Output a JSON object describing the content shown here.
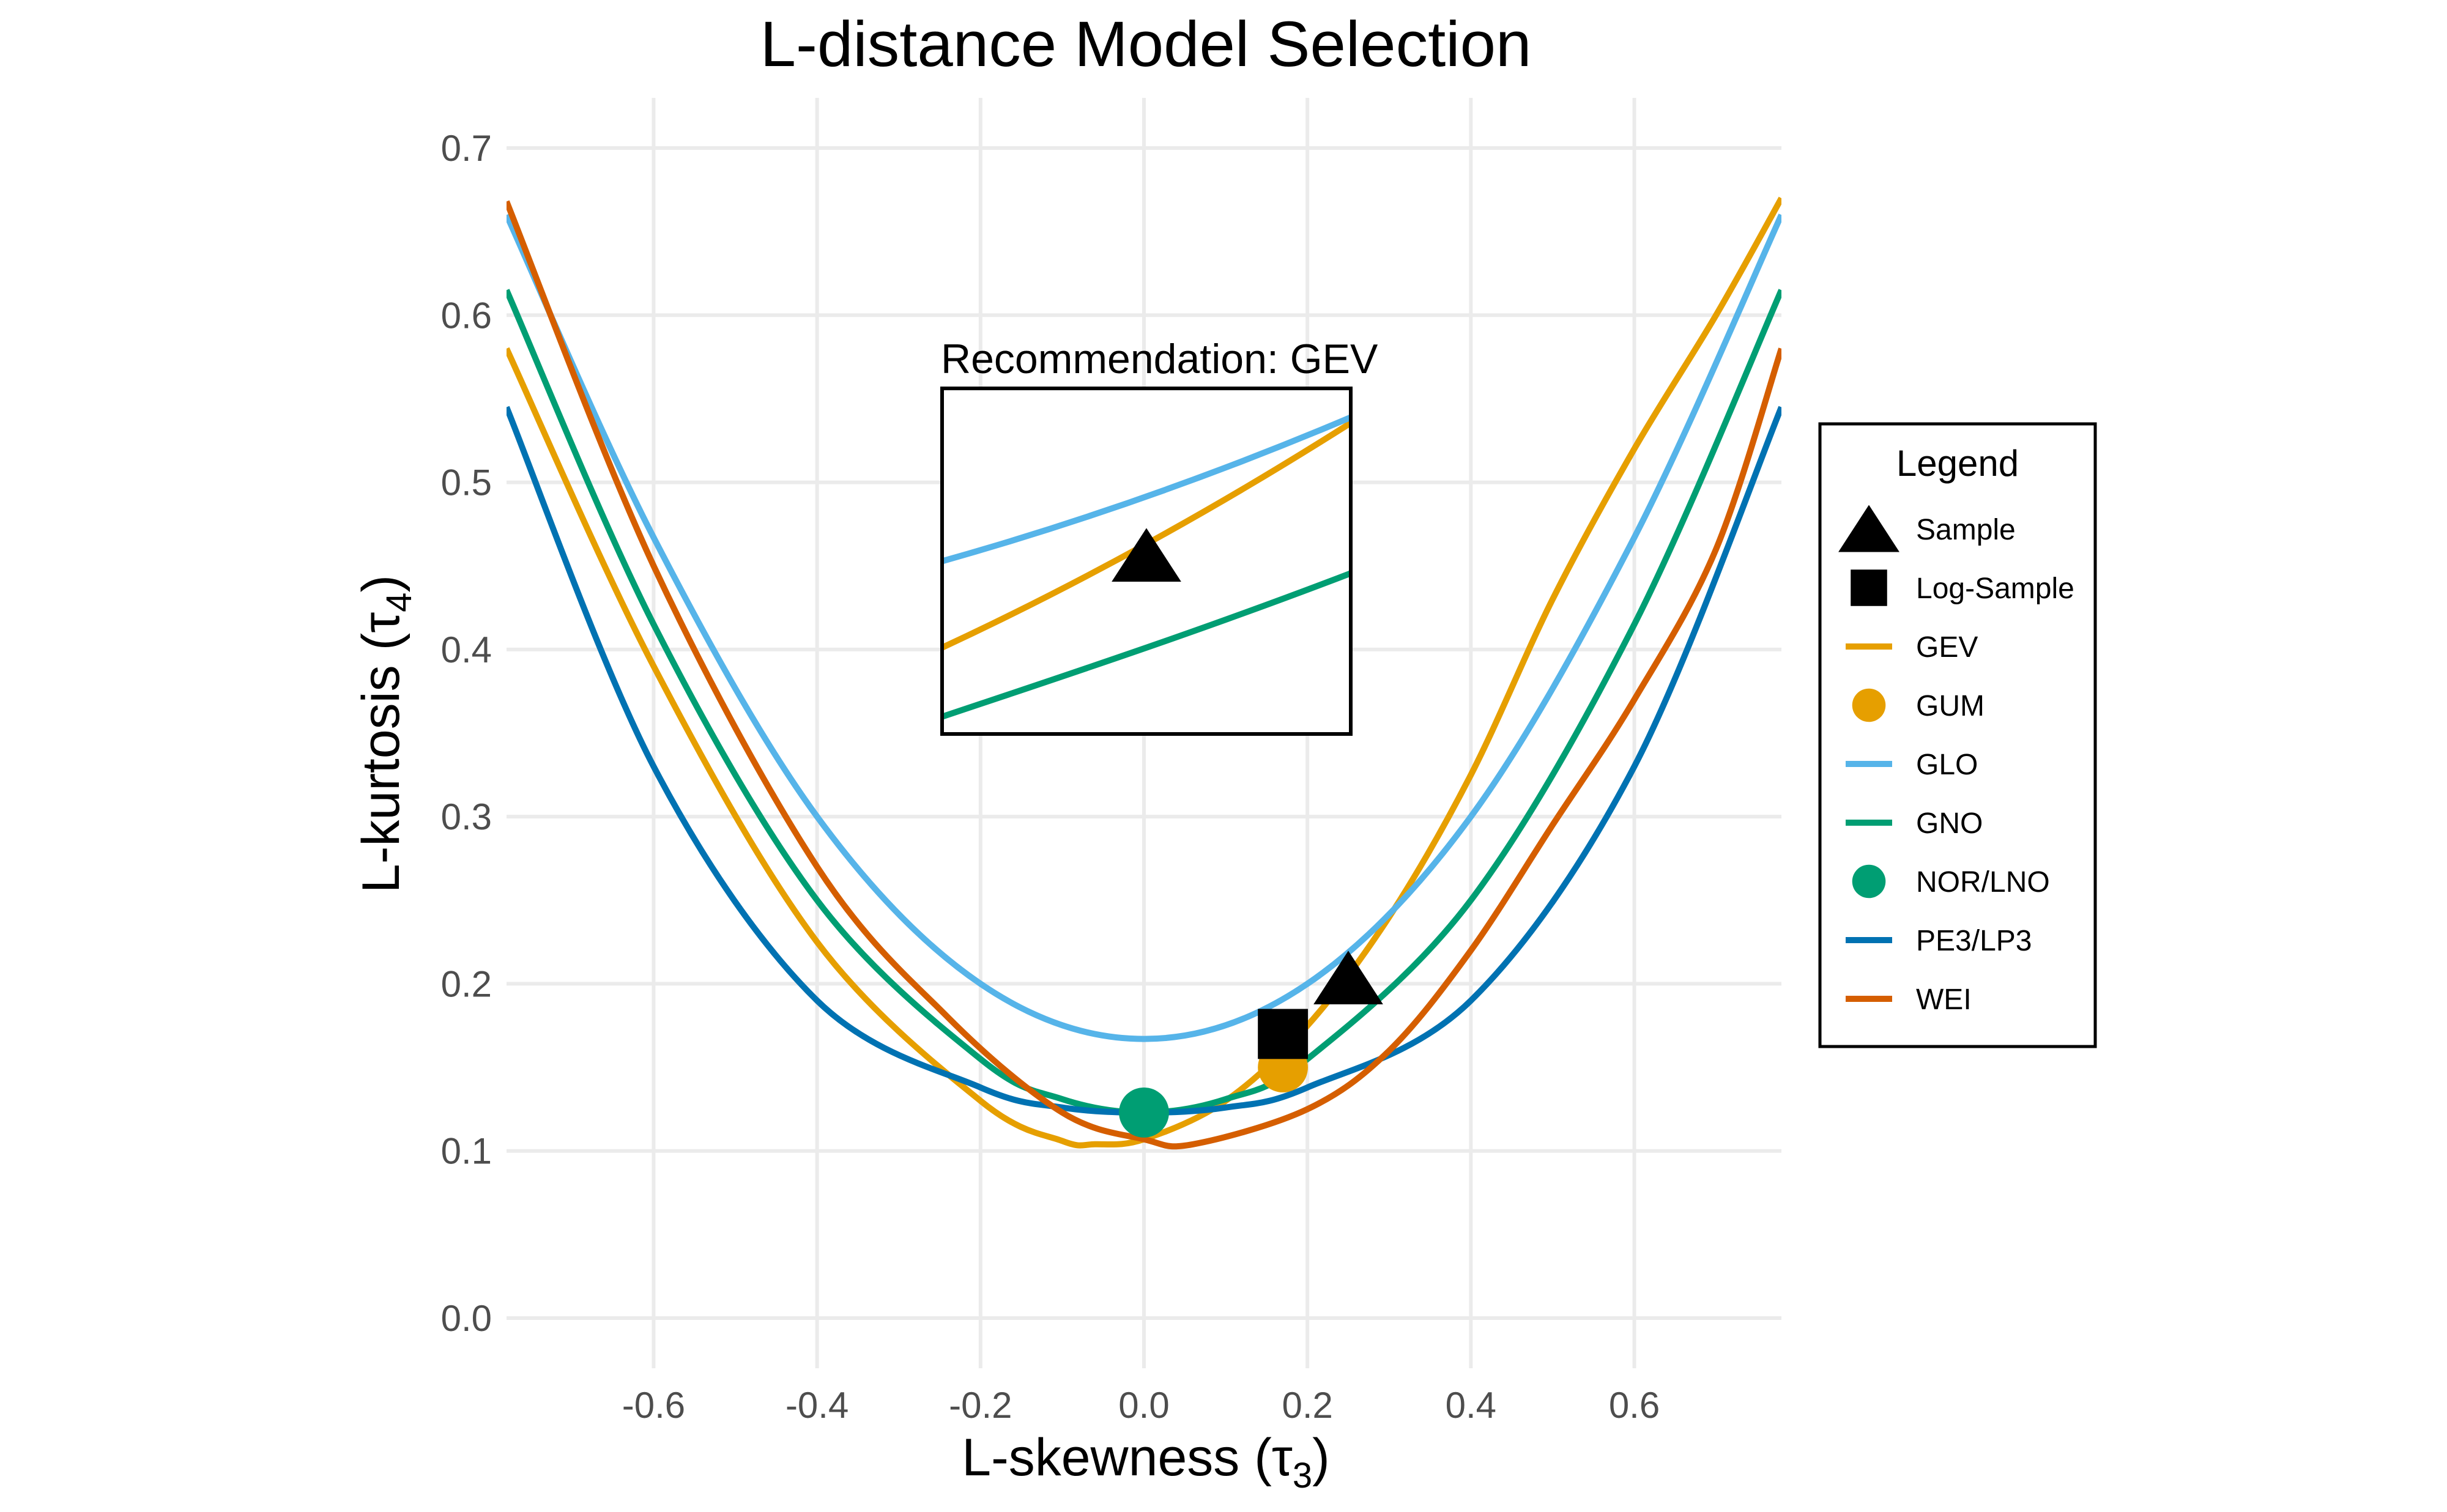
{
  "chart_data": {
    "type": "line",
    "title": "L-distance Model Selection",
    "xlabel": {
      "main": "L-skewness (τ",
      "sub": "3",
      "close": ")"
    },
    "ylabel": {
      "main": "L-kurtosis (τ",
      "sub": "4",
      "close": ")"
    },
    "xlim": [
      -0.78,
      0.78
    ],
    "ylim": [
      -0.03,
      0.73
    ],
    "x_ticks": [
      -0.6,
      -0.4,
      -0.2,
      0.0,
      0.2,
      0.4,
      0.6
    ],
    "x_tick_labels": [
      "-0.6",
      "-0.4",
      "-0.2",
      "0.0",
      "0.2",
      "0.4",
      "0.6"
    ],
    "y_ticks": [
      0.0,
      0.1,
      0.2,
      0.3,
      0.4,
      0.5,
      0.6,
      0.7
    ],
    "y_tick_labels": [
      "0.0",
      "0.1",
      "0.2",
      "0.3",
      "0.4",
      "0.5",
      "0.6",
      "0.7"
    ],
    "grid": true,
    "legend_position": "right",
    "legend_title": "Legend",
    "series": [
      {
        "name": "GEV",
        "kind": "line",
        "color": "#E69F00",
        "x": [
          -0.78,
          -0.6,
          -0.4,
          -0.2,
          -0.1,
          -0.06,
          0.0,
          0.1,
          0.2,
          0.3,
          0.4,
          0.5,
          0.6,
          0.7,
          0.78
        ],
        "y": [
          0.58,
          0.39,
          0.225,
          0.13,
          0.106,
          0.104,
          0.107,
          0.13,
          0.175,
          0.24,
          0.325,
          0.43,
          0.52,
          0.6,
          0.67
        ]
      },
      {
        "name": "GLO",
        "kind": "line",
        "color": "#56B4E9",
        "x": [
          -0.78,
          -0.6,
          -0.4,
          -0.2,
          0.0,
          0.2,
          0.4,
          0.6,
          0.78
        ],
        "y": [
          0.66,
          0.467,
          0.3,
          0.2,
          0.167,
          0.2,
          0.3,
          0.467,
          0.66
        ]
      },
      {
        "name": "GNO",
        "kind": "line",
        "color": "#009E73",
        "x": [
          -0.78,
          -0.6,
          -0.4,
          -0.2,
          -0.1,
          0.0,
          0.1,
          0.2,
          0.4,
          0.6,
          0.78
        ],
        "y": [
          0.615,
          0.415,
          0.25,
          0.155,
          0.131,
          0.123,
          0.131,
          0.155,
          0.25,
          0.415,
          0.615
        ]
      },
      {
        "name": "PE3/LP3",
        "kind": "line",
        "color": "#0072B2",
        "x": [
          -0.78,
          -0.6,
          -0.4,
          -0.2,
          -0.1,
          0.0,
          0.1,
          0.2,
          0.4,
          0.6,
          0.78
        ],
        "y": [
          0.545,
          0.33,
          0.19,
          0.138,
          0.126,
          0.123,
          0.126,
          0.138,
          0.19,
          0.33,
          0.545
        ]
      },
      {
        "name": "WEI",
        "kind": "line",
        "color": "#D55E00",
        "x": [
          -0.78,
          -0.6,
          -0.4,
          -0.24,
          -0.1,
          0.0,
          0.06,
          0.2,
          0.3,
          0.4,
          0.5,
          0.6,
          0.7,
          0.78
        ],
        "y": [
          0.668,
          0.45,
          0.27,
          0.18,
          0.123,
          0.107,
          0.104,
          0.125,
          0.16,
          0.22,
          0.295,
          0.37,
          0.46,
          0.58
        ]
      },
      {
        "name": "GUM",
        "kind": "point",
        "shape": "circle",
        "color": "#E69F00",
        "x": 0.17,
        "y": 0.15
      },
      {
        "name": "NOR/LNO",
        "kind": "point",
        "shape": "circle",
        "color": "#009E73",
        "x": 0.0,
        "y": 0.123
      },
      {
        "name": "Sample",
        "kind": "point",
        "shape": "triangle",
        "color": "#000000",
        "x": 0.25,
        "y": 0.2
      },
      {
        "name": "Log-Sample",
        "kind": "point",
        "shape": "square",
        "color": "#000000",
        "x": 0.17,
        "y": 0.17
      }
    ],
    "legend_order": [
      "Sample",
      "Log-Sample",
      "GEV",
      "GUM",
      "GLO",
      "GNO",
      "NOR/LNO",
      "PE3/LP3",
      "WEI"
    ],
    "inset": {
      "title": "Recommendation: GEV",
      "xlim": [
        0.2,
        0.3
      ],
      "ylim": [
        0.15,
        0.25
      ],
      "arrow": {
        "from": [
          0.25,
          0.2
        ],
        "to": [
          0.2494,
          0.1955
        ]
      }
    }
  }
}
